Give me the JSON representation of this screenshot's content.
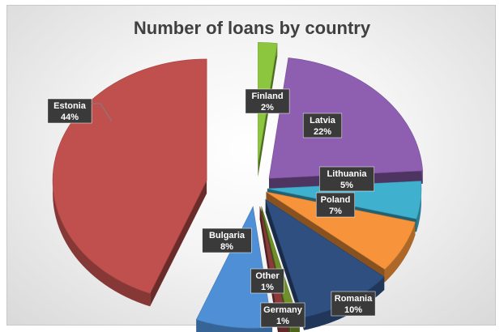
{
  "chart_data": {
    "type": "pie",
    "title": "Number of loans by country",
    "categories": [
      "Finland",
      "Latvia",
      "Lithuania",
      "Poland",
      "Romania",
      "Germany",
      "Other",
      "Bulgaria",
      "Estonia"
    ],
    "values": [
      2,
      22,
      5,
      7,
      10,
      1,
      1,
      8,
      44
    ],
    "value_labels": [
      "2%",
      "22%",
      "5%",
      "7%",
      "10%",
      "1%",
      "1%",
      "8%",
      "44%"
    ],
    "colors": {
      "Finland": "#8cc63f",
      "Latvia": "#8e5fb0",
      "Lithuania": "#3fb1cf",
      "Poland": "#f7943b",
      "Romania": "#2e4f7f",
      "Germany": "#6e8f2a",
      "Other": "#8a3a3a",
      "Bulgaria": "#4f8fd6",
      "Estonia": "#c0504d"
    },
    "style": "3d-exploded-pie",
    "legend": "data-labels"
  }
}
